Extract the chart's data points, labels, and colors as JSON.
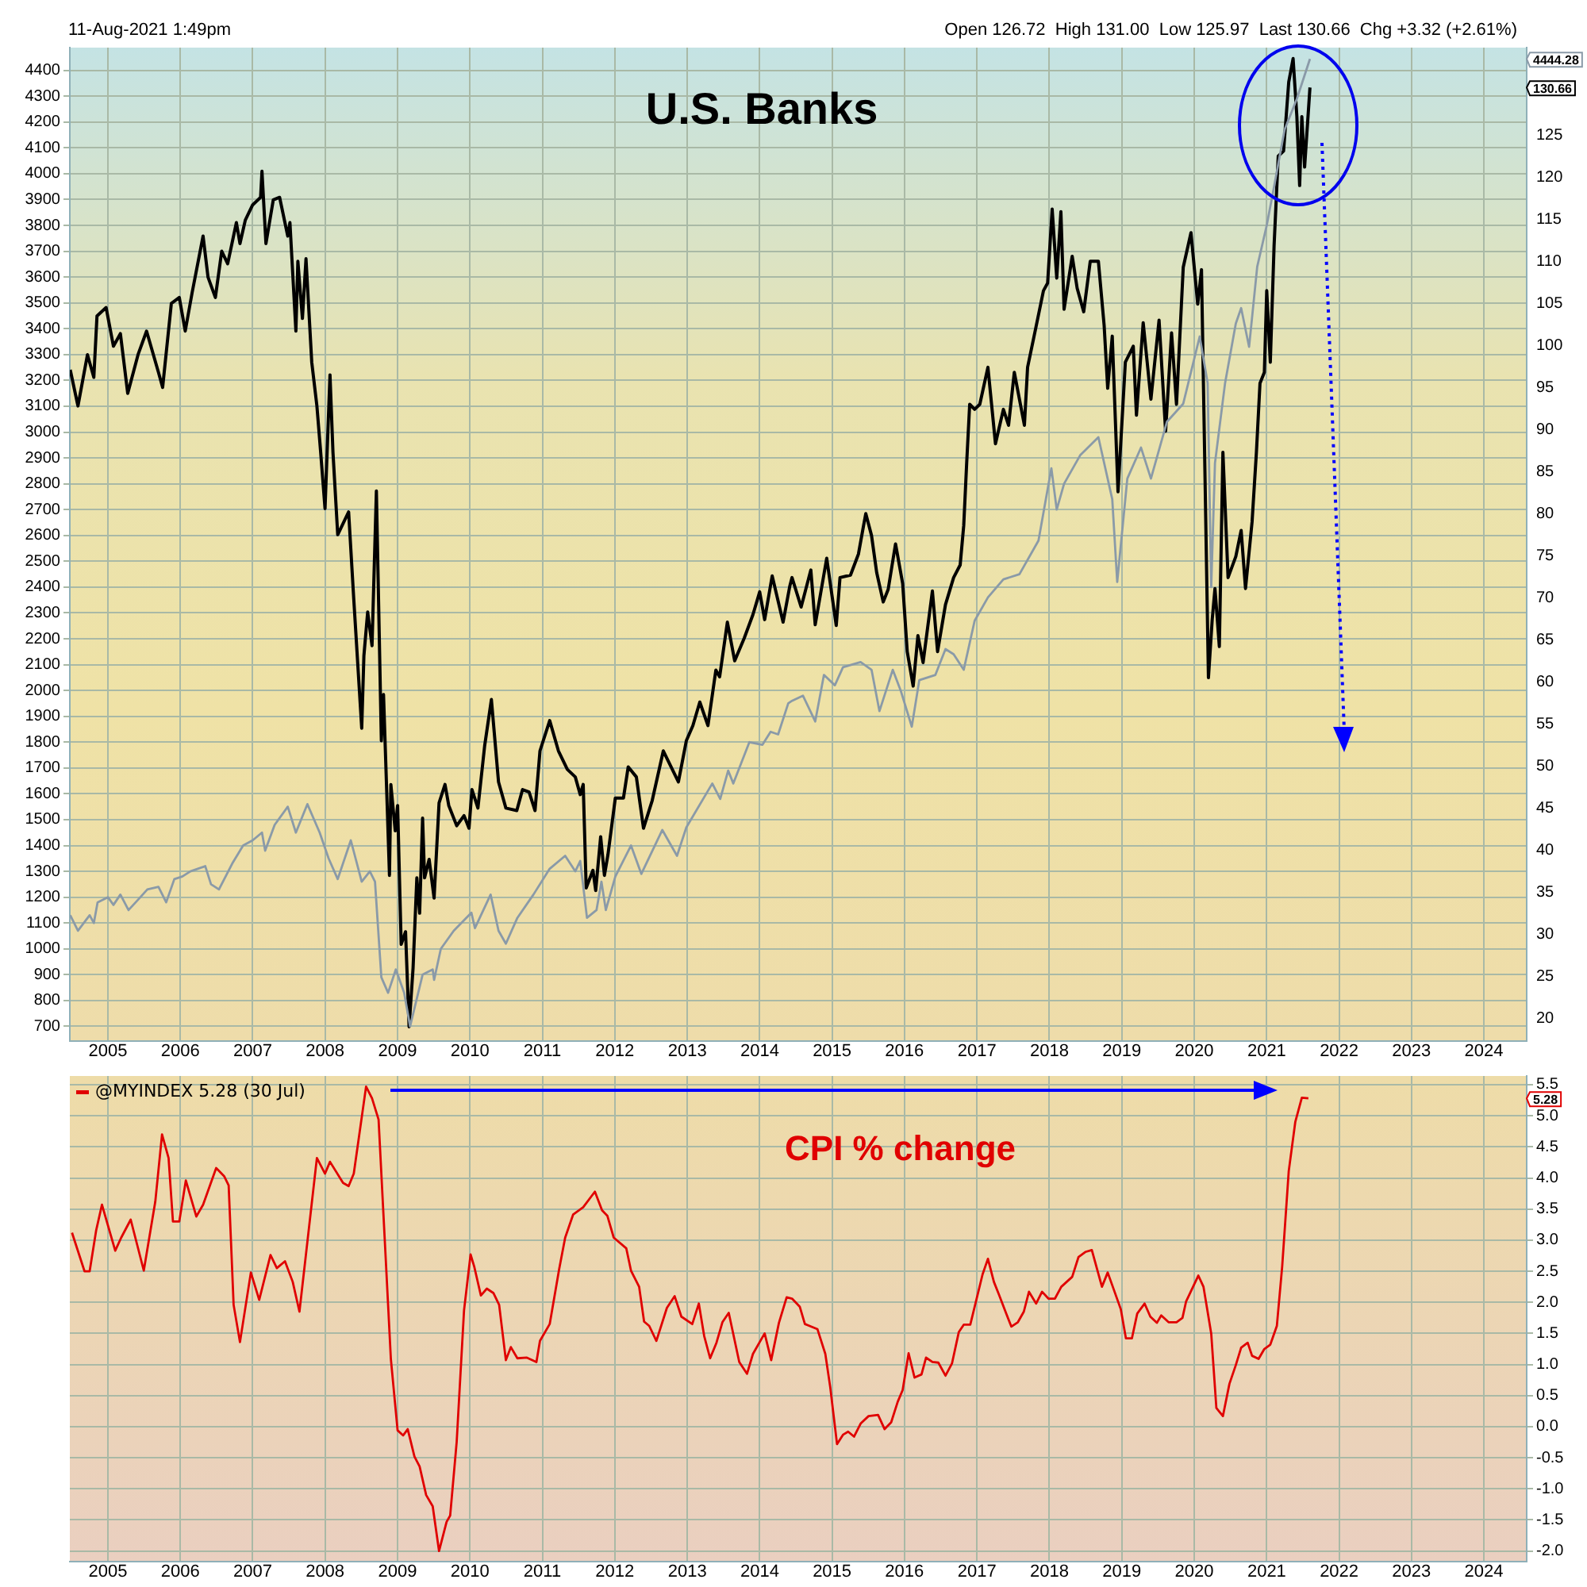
{
  "chart_data": [
    {
      "type": "line",
      "title": "U.S. Banks",
      "subtitle": "11-Aug-2021 1:49pm",
      "annotations": [
        "Open 126.72  High 131.00  Low 125.97  Last 130.66  Chg +3.32 (+2.61%)",
        "4444.28",
        "130.66"
      ],
      "xlim": [
        "2004-06-23",
        "2024-08-04"
      ],
      "xticks": [
        {
          "value": "2005-01-01",
          "label": "2005"
        },
        {
          "value": "2006-01-01",
          "label": "2006"
        },
        {
          "value": "2007-01-01",
          "label": "2007"
        },
        {
          "value": "2008-01-01",
          "label": "2008"
        },
        {
          "value": "2009-01-01",
          "label": "2009"
        },
        {
          "value": "2010-01-01",
          "label": "2010"
        },
        {
          "value": "2011-01-01",
          "label": "2011"
        },
        {
          "value": "2012-01-01",
          "label": "2012"
        },
        {
          "value": "2013-01-01",
          "label": "2013"
        },
        {
          "value": "2014-01-01",
          "label": "2014"
        },
        {
          "value": "2015-01-01",
          "label": "2015"
        },
        {
          "value": "2016-01-01",
          "label": "2016"
        },
        {
          "value": "2017-01-01",
          "label": "2017"
        },
        {
          "value": "2018-01-01",
          "label": "2018"
        },
        {
          "value": "2019-01-01",
          "label": "2019"
        },
        {
          "value": "2020-01-01",
          "label": "2020"
        },
        {
          "value": "2021-01-01",
          "label": "2021"
        },
        {
          "value": "2022-01-01",
          "label": "2022"
        },
        {
          "value": "2023-01-01",
          "label": "2023"
        },
        {
          "value": "2024-01-01",
          "label": "2024"
        }
      ],
      "ylim": [
        643,
        4488
      ],
      "yticks": [
        700,
        800,
        900,
        1000,
        1100,
        1200,
        1300,
        1400,
        1500,
        1600,
        1700,
        1800,
        1900,
        2000,
        2100,
        2200,
        2300,
        2400,
        2500,
        2600,
        2700,
        2800,
        2900,
        3000,
        3100,
        3200,
        3300,
        3400,
        3500,
        3600,
        3700,
        3800,
        3900,
        4000,
        4100,
        4200,
        4300,
        4400
      ],
      "y2lim": [
        17.3,
        135.4
      ],
      "y2ticks": [
        20,
        25,
        30,
        35,
        40,
        45,
        50,
        55,
        60,
        65,
        70,
        75,
        80,
        85,
        90,
        95,
        100,
        105,
        110,
        115,
        120,
        125
      ],
      "grid": true,
      "series": [
        {
          "color": "#8a9aa8",
          "axis": "y",
          "x": [
            "2004-06-25",
            "2004-08-03",
            "2004-10-01",
            "2004-10-22",
            "2004-11-10",
            "2005-01-01",
            "2005-01-29",
            "2005-03-05",
            "2005-04-15",
            "2005-06-02",
            "2005-07-19",
            "2005-09-13",
            "2005-10-22",
            "2005-12-02",
            "2006-01-11",
            "2006-02-21",
            "2006-05-07",
            "2006-06-05",
            "2006-07-15",
            "2006-09-20",
            "2006-11-14",
            "2007-01-01",
            "2007-02-17",
            "2007-03-05",
            "2007-04-22",
            "2007-06-27",
            "2007-08-07",
            "2007-10-04",
            "2007-12-05",
            "2008-01-19",
            "2008-03-05",
            "2008-05-10",
            "2008-07-04",
            "2008-08-14",
            "2008-09-09",
            "2008-10-11",
            "2008-11-14",
            "2008-12-23",
            "2009-02-03",
            "2009-03-05",
            "2009-05-07",
            "2009-06-27",
            "2009-07-04",
            "2009-08-07",
            "2009-10-11",
            "2010-01-08",
            "2010-01-26",
            "2010-04-15",
            "2010-05-25",
            "2010-07-01",
            "2010-08-28",
            "2010-11-17",
            "2011-02-07",
            "2011-04-26",
            "2011-06-16",
            "2011-07-11",
            "2011-08-14",
            "2011-10-01",
            "2011-10-26",
            "2011-11-17",
            "2012-01-04",
            "2012-03-23",
            "2012-05-14",
            "2012-08-28",
            "2012-11-10",
            "2012-12-27",
            "2013-05-07",
            "2013-06-16",
            "2013-07-26",
            "2013-08-21",
            "2013-11-10",
            "2014-01-15",
            "2014-02-25",
            "2014-04-04",
            "2014-05-25",
            "2014-06-13",
            "2014-08-07",
            "2014-10-08",
            "2014-11-21",
            "2015-01-15",
            "2015-02-25",
            "2015-05-25",
            "2015-07-19",
            "2015-08-28",
            "2015-11-03",
            "2015-12-13",
            "2016-02-07",
            "2016-03-16",
            "2016-06-05",
            "2016-07-26",
            "2016-09-05",
            "2016-10-26",
            "2016-12-20",
            "2017-02-25",
            "2017-05-14",
            "2017-08-03",
            "2017-11-07",
            "2018-01-11",
            "2018-02-07",
            "2018-03-16",
            "2018-06-05",
            "2018-09-05",
            "2018-11-14",
            "2018-12-09",
            "2019-01-29",
            "2019-04-08",
            "2019-05-28",
            "2019-08-17",
            "2019-11-07",
            "2020-01-29",
            "2020-03-09",
            "2020-03-27",
            "2020-04-15",
            "2020-06-05",
            "2020-07-29",
            "2020-08-25",
            "2020-10-04",
            "2020-11-14",
            "2021-01-01",
            "2021-02-07",
            "2021-04-01",
            "2021-06-02",
            "2021-08-07"
          ],
          "values": [
            1130,
            1070,
            1130,
            1100,
            1180,
            1200,
            1170,
            1210,
            1150,
            1190,
            1230,
            1240,
            1180,
            1270,
            1280,
            1300,
            1320,
            1250,
            1230,
            1330,
            1400,
            1420,
            1450,
            1380,
            1480,
            1550,
            1450,
            1560,
            1450,
            1350,
            1270,
            1420,
            1260,
            1300,
            1260,
            890,
            830,
            920,
            830,
            700,
            900,
            920,
            880,
            1000,
            1070,
            1140,
            1080,
            1210,
            1070,
            1020,
            1120,
            1210,
            1310,
            1360,
            1300,
            1340,
            1120,
            1150,
            1260,
            1150,
            1280,
            1400,
            1290,
            1460,
            1360,
            1470,
            1640,
            1580,
            1690,
            1640,
            1800,
            1790,
            1840,
            1830,
            1950,
            1960,
            1980,
            1880,
            2060,
            2020,
            2090,
            2110,
            2080,
            1920,
            2080,
            2000,
            1860,
            2040,
            2060,
            2160,
            2140,
            2080,
            2270,
            2360,
            2430,
            2450,
            2580,
            2860,
            2700,
            2800,
            2910,
            2980,
            2740,
            2420,
            2820,
            2940,
            2820,
            3040,
            3110,
            3370,
            3190,
            2400,
            2880,
            3190,
            3420,
            3480,
            3330,
            3640,
            3800,
            3950,
            4170,
            4290,
            4444.28
          ]
        },
        {
          "color": "#000000",
          "axis": "y2",
          "x": [
            "2004-06-25",
            "2004-08-03",
            "2004-09-20",
            "2004-10-22",
            "2004-11-07",
            "2004-12-23",
            "2005-01-29",
            "2005-03-05",
            "2005-04-11",
            "2005-06-02",
            "2005-07-15",
            "2005-09-13",
            "2005-10-04",
            "2005-11-17",
            "2005-12-27",
            "2006-01-26",
            "2006-03-02",
            "2006-04-26",
            "2006-05-21",
            "2006-06-27",
            "2006-07-29",
            "2006-08-28",
            "2006-10-11",
            "2006-10-29",
            "2006-11-25",
            "2007-01-01",
            "2007-02-10",
            "2007-02-17",
            "2007-03-09",
            "2007-04-15",
            "2007-05-17",
            "2007-06-27",
            "2007-07-08",
            "2007-08-07",
            "2007-08-17",
            "2007-09-09",
            "2007-09-27",
            "2007-10-26",
            "2007-11-21",
            "2007-12-09",
            "2008-01-01",
            "2008-01-26",
            "2008-02-10",
            "2008-03-05",
            "2008-04-29",
            "2008-05-25",
            "2008-07-04",
            "2008-07-15",
            "2008-08-03",
            "2008-08-25",
            "2008-09-16",
            "2008-10-11",
            "2008-10-22",
            "2008-11-21",
            "2008-11-28",
            "2008-12-20",
            "2009-01-01",
            "2009-01-19",
            "2009-02-10",
            "2009-02-28",
            "2009-03-20",
            "2009-04-08",
            "2009-04-22",
            "2009-05-07",
            "2009-05-17",
            "2009-06-09",
            "2009-07-04",
            "2009-07-29",
            "2009-08-28",
            "2009-09-16",
            "2009-10-26",
            "2009-12-02",
            "2009-12-27",
            "2010-01-11",
            "2010-02-10",
            "2010-03-16",
            "2010-04-19",
            "2010-05-25",
            "2010-07-01",
            "2010-08-25",
            "2010-09-23",
            "2010-10-26",
            "2010-11-25",
            "2010-12-20",
            "2011-02-07",
            "2011-03-23",
            "2011-05-07",
            "2011-06-16",
            "2011-07-11",
            "2011-07-26",
            "2011-08-10",
            "2011-09-13",
            "2011-09-27",
            "2011-10-22",
            "2011-11-10",
            "2011-11-28",
            "2012-01-04",
            "2012-02-14",
            "2012-03-09",
            "2012-04-19",
            "2012-05-25",
            "2012-07-08",
            "2012-09-02",
            "2012-10-11",
            "2012-11-17",
            "2012-12-27",
            "2013-01-29",
            "2013-03-05",
            "2013-04-15",
            "2013-05-25",
            "2013-06-13",
            "2013-07-22",
            "2013-08-28",
            "2013-10-15",
            "2013-11-28",
            "2014-01-01",
            "2014-01-26",
            "2014-03-05",
            "2014-04-29",
            "2014-06-02",
            "2014-06-13",
            "2014-07-29",
            "2014-09-16",
            "2014-10-08",
            "2014-12-05",
            "2015-01-22",
            "2015-02-10",
            "2015-04-04",
            "2015-05-14",
            "2015-06-09",
            "2015-06-20",
            "2015-07-19",
            "2015-08-14",
            "2015-09-16",
            "2015-10-11",
            "2015-11-17",
            "2015-12-23",
            "2016-01-15",
            "2016-02-14",
            "2016-03-09",
            "2016-04-04",
            "2016-05-21",
            "2016-06-16",
            "2016-07-26",
            "2016-09-05",
            "2016-10-08",
            "2016-10-26",
            "2016-11-10",
            "2016-11-25",
            "2016-12-20",
            "2017-01-15",
            "2017-02-25",
            "2017-04-04",
            "2017-05-14",
            "2017-06-09",
            "2017-07-08",
            "2017-08-28",
            "2017-09-13",
            "2017-10-22",
            "2017-12-02",
            "2017-12-23",
            "2018-01-15",
            "2018-02-07",
            "2018-02-28",
            "2018-03-16",
            "2018-04-26",
            "2018-05-21",
            "2018-06-23",
            "2018-07-26",
            "2018-09-05",
            "2018-10-04",
            "2018-10-22",
            "2018-11-14",
            "2018-12-13",
            "2019-01-19",
            "2019-02-28",
            "2019-03-16",
            "2019-04-19",
            "2019-05-28",
            "2019-07-08",
            "2019-08-10",
            "2019-09-09",
            "2019-10-04",
            "2019-11-07",
            "2019-12-16",
            "2020-01-19",
            "2020-02-07",
            "2020-03-13",
            "2020-04-01",
            "2020-04-15",
            "2020-05-07",
            "2020-05-25",
            "2020-06-20",
            "2020-07-29",
            "2020-08-25",
            "2020-09-16",
            "2020-10-19",
            "2020-11-10",
            "2020-11-28",
            "2020-12-20",
            "2021-01-01",
            "2021-01-19",
            "2021-02-07",
            "2021-02-28",
            "2021-03-27",
            "2021-04-22",
            "2021-05-14",
            "2021-06-02",
            "2021-06-16",
            "2021-06-27",
            "2021-07-11",
            "2021-08-07"
          ],
          "values": [
            97.1,
            92.8,
            98.9,
            96.2,
            103.5,
            104.5,
            99.9,
            101.4,
            94.3,
            98.9,
            101.7,
            96.8,
            95.0,
            105.0,
            105.7,
            101.7,
            106.3,
            113.0,
            108.1,
            105.7,
            111.2,
            109.7,
            114.6,
            112.1,
            114.9,
            116.7,
            117.6,
            120.7,
            112.1,
            117.3,
            117.6,
            113.0,
            114.6,
            101.7,
            110.0,
            103.2,
            110.3,
            98.0,
            92.8,
            87.6,
            80.6,
            96.5,
            87.3,
            77.5,
            80.2,
            69.8,
            54.5,
            63.1,
            68.3,
            64.3,
            82.7,
            53.0,
            58.5,
            37.0,
            47.8,
            42.3,
            45.3,
            28.8,
            30.3,
            19.0,
            26.0,
            36.7,
            32.5,
            43.8,
            36.7,
            38.9,
            34.3,
            45.6,
            47.8,
            45.3,
            42.9,
            44.1,
            42.6,
            47.2,
            45.0,
            52.4,
            57.9,
            48.1,
            45.0,
            44.7,
            47.2,
            46.9,
            44.7,
            51.8,
            55.4,
            51.8,
            49.6,
            48.7,
            46.6,
            47.8,
            35.5,
            37.6,
            35.2,
            41.6,
            37.0,
            39.5,
            46.2,
            46.2,
            49.9,
            48.7,
            42.6,
            45.9,
            51.8,
            49.9,
            48.1,
            53.0,
            54.8,
            57.6,
            54.8,
            61.4,
            60.6,
            67.1,
            62.5,
            65.2,
            68.0,
            70.7,
            67.4,
            72.6,
            67.1,
            71.4,
            72.4,
            68.9,
            73.3,
            66.8,
            74.7,
            66.7,
            72.4,
            72.7,
            75.2,
            78.6,
            80.0,
            77.4,
            73.0,
            69.5,
            71.0,
            76.4,
            71.7,
            63.6,
            59.5,
            65.5,
            62.3,
            70.8,
            63.6,
            69.2,
            72.4,
            73.9,
            78.6,
            86.1,
            93.0,
            92.4,
            93.0,
            97.4,
            88.3,
            92.4,
            90.5,
            96.8,
            90.5,
            97.4,
            101.8,
            106.5,
            107.4,
            116.2,
            108.0,
            115.9,
            104.3,
            110.6,
            106.8,
            104.0,
            110.0,
            110.0,
            102.4,
            94.9,
            101.1,
            82.6,
            98.0,
            99.9,
            91.7,
            102.7,
            93.6,
            103.0,
            89.8,
            101.5,
            93.0,
            109.3,
            113.4,
            104.9,
            109.0,
            60.5,
            67.4,
            71.1,
            64.2,
            87.3,
            72.4,
            74.9,
            78.0,
            71.1,
            79.0,
            87.3,
            95.5,
            96.8,
            106.5,
            98.0,
            111.8,
            122.5,
            123.1,
            131.3,
            134.1,
            127.2,
            119.0,
            127.2,
            121.2,
            130.66
          ]
        }
      ]
    },
    {
      "type": "line",
      "legend": "top left",
      "annotations": [
        "CPI % change",
        "5.28"
      ],
      "xlim": [
        "2004-06-23",
        "2024-08-04"
      ],
      "xticks": [
        {
          "value": "2005-01-01",
          "label": "2005"
        },
        {
          "value": "2006-01-01",
          "label": "2006"
        },
        {
          "value": "2007-01-01",
          "label": "2007"
        },
        {
          "value": "2008-01-01",
          "label": "2008"
        },
        {
          "value": "2009-01-01",
          "label": "2009"
        },
        {
          "value": "2010-01-01",
          "label": "2010"
        },
        {
          "value": "2011-01-01",
          "label": "2011"
        },
        {
          "value": "2012-01-01",
          "label": "2012"
        },
        {
          "value": "2013-01-01",
          "label": "2013"
        },
        {
          "value": "2014-01-01",
          "label": "2014"
        },
        {
          "value": "2015-01-01",
          "label": "2015"
        },
        {
          "value": "2016-01-01",
          "label": "2016"
        },
        {
          "value": "2017-01-01",
          "label": "2017"
        },
        {
          "value": "2018-01-01",
          "label": "2018"
        },
        {
          "value": "2019-01-01",
          "label": "2019"
        },
        {
          "value": "2020-01-01",
          "label": "2020"
        },
        {
          "value": "2021-01-01",
          "label": "2021"
        },
        {
          "value": "2022-01-01",
          "label": "2022"
        },
        {
          "value": "2023-01-01",
          "label": "2023"
        },
        {
          "value": "2024-01-01",
          "label": "2024"
        }
      ],
      "y2lim": [
        -2.17,
        5.64
      ],
      "y2ticks": [
        {
          "value": -2,
          "label": "-2.0"
        },
        -1.5,
        {
          "value": -1,
          "label": "-1.0"
        },
        -0.5,
        {
          "value": 0,
          "label": "0.0"
        },
        0.5,
        {
          "value": 1,
          "label": "1.0"
        },
        1.5,
        {
          "value": 2,
          "label": "2.0"
        },
        2.5,
        {
          "value": 3,
          "label": "3.0"
        },
        3.5,
        {
          "value": 4,
          "label": "4.0"
        },
        4.5,
        {
          "value": 5,
          "label": "5.0"
        },
        5.5
      ],
      "grid": true,
      "series": [
        {
          "name": "@MYINDEX 5.28 (30 Jul)",
          "color": "#e00000",
          "axis": "y2",
          "x": [
            "2004-07-04",
            "2004-09-05",
            "2004-10-01",
            "2004-11-03",
            "2004-12-02",
            "2005-02-07",
            "2005-03-09",
            "2005-04-26",
            "2005-07-01",
            "2005-08-28",
            "2005-10-01",
            "2005-11-03",
            "2005-11-25",
            "2005-12-27",
            "2006-01-29",
            "2006-03-23",
            "2006-04-26",
            "2006-07-01",
            "2006-08-10",
            "2006-09-02",
            "2006-09-27",
            "2006-10-29",
            "2006-12-23",
            "2007-02-03",
            "2007-04-01",
            "2007-05-03",
            "2007-06-13",
            "2007-07-22",
            "2007-08-25",
            "2007-11-21",
            "2008-01-01",
            "2008-01-26",
            "2008-04-01",
            "2008-04-29",
            "2008-05-25",
            "2008-07-26",
            "2008-08-25",
            "2008-09-27",
            "2008-11-28",
            "2009-01-01",
            "2009-01-29",
            "2009-02-21",
            "2009-03-27",
            "2009-04-22",
            "2009-05-25",
            "2009-06-27",
            "2009-07-29",
            "2009-09-05",
            "2009-09-23",
            "2009-10-26",
            "2009-12-02",
            "2010-01-04",
            "2010-01-22",
            "2010-02-25",
            "2010-03-27",
            "2010-04-29",
            "2010-05-28",
            "2010-07-01",
            "2010-07-26",
            "2010-08-28",
            "2010-10-15",
            "2010-12-02",
            "2010-12-20",
            "2011-02-07",
            "2011-03-27",
            "2011-04-26",
            "2011-06-05",
            "2011-07-26",
            "2011-09-23",
            "2011-10-29",
            "2011-11-25",
            "2011-12-27",
            "2012-02-28",
            "2012-03-23",
            "2012-05-03",
            "2012-05-28",
            "2012-06-23",
            "2012-07-29",
            "2012-09-20",
            "2012-10-29",
            "2012-12-02",
            "2013-01-26",
            "2013-02-28",
            "2013-03-27",
            "2013-04-26",
            "2013-05-28",
            "2013-06-27",
            "2013-07-29",
            "2013-09-20",
            "2013-10-29",
            "2013-11-28",
            "2014-01-26",
            "2014-02-28",
            "2014-04-08",
            "2014-05-17",
            "2014-06-13",
            "2014-07-22",
            "2014-08-17",
            "2014-10-19",
            "2014-11-28",
            "2014-12-23",
            "2015-01-26",
            "2015-02-25",
            "2015-03-23",
            "2015-04-22",
            "2015-05-25",
            "2015-07-04",
            "2015-08-21",
            "2015-09-23",
            "2015-10-26",
            "2015-11-28",
            "2015-12-23",
            "2016-01-22",
            "2016-02-21",
            "2016-03-27",
            "2016-04-19",
            "2016-05-21",
            "2016-06-20",
            "2016-07-26",
            "2016-08-28",
            "2016-10-01",
            "2016-10-26",
            "2016-11-28",
            "2017-01-29",
            "2017-02-25",
            "2017-03-27",
            "2017-04-22",
            "2017-05-28",
            "2017-06-23",
            "2017-07-26",
            "2017-08-25",
            "2017-09-20",
            "2017-10-26",
            "2017-11-25",
            "2017-12-27",
            "2018-01-29",
            "2018-03-02",
            "2018-04-26",
            "2018-05-28",
            "2018-07-01",
            "2018-08-03",
            "2018-09-23",
            "2018-10-22",
            "2018-12-27",
            "2019-01-22",
            "2019-02-21",
            "2019-03-20",
            "2019-04-26",
            "2019-05-25",
            "2019-06-27",
            "2019-07-19",
            "2019-08-25",
            "2019-10-04",
            "2019-11-03",
            "2019-11-21",
            "2020-01-22",
            "2020-02-17",
            "2020-03-27",
            "2020-04-22",
            "2020-05-25",
            "2020-06-27",
            "2020-07-29",
            "2020-08-25",
            "2020-09-27",
            "2020-10-19",
            "2020-11-21",
            "2020-12-20",
            "2021-01-19",
            "2021-02-21",
            "2021-03-20",
            "2021-04-22",
            "2021-05-25",
            "2021-06-27",
            "2021-07-30"
          ],
          "values": [
            3.12,
            2.5,
            2.5,
            3.16,
            3.57,
            2.83,
            3.04,
            3.33,
            2.51,
            3.62,
            4.7,
            4.32,
            3.3,
            3.3,
            3.96,
            3.38,
            3.57,
            4.16,
            4.03,
            3.88,
            1.96,
            1.36,
            2.48,
            2.04,
            2.76,
            2.55,
            2.66,
            2.33,
            1.85,
            4.32,
            4.07,
            4.26,
            3.92,
            3.87,
            4.07,
            5.47,
            5.28,
            4.94,
            1.09,
            -0.06,
            -0.14,
            -0.04,
            -0.48,
            -0.64,
            -1.1,
            -1.28,
            -2.0,
            -1.53,
            -1.43,
            -0.24,
            1.87,
            2.77,
            2.58,
            2.11,
            2.22,
            2.15,
            1.96,
            1.07,
            1.28,
            1.1,
            1.11,
            1.04,
            1.38,
            1.65,
            2.54,
            3.04,
            3.41,
            3.53,
            3.78,
            3.48,
            3.39,
            3.04,
            2.87,
            2.51,
            2.25,
            1.69,
            1.62,
            1.38,
            1.91,
            2.1,
            1.77,
            1.65,
            1.98,
            1.46,
            1.1,
            1.35,
            1.68,
            1.83,
            1.04,
            0.85,
            1.17,
            1.5,
            1.07,
            1.67,
            2.08,
            2.06,
            1.93,
            1.65,
            1.57,
            1.17,
            0.63,
            -0.28,
            -0.13,
            -0.08,
            -0.16,
            0.05,
            0.17,
            0.19,
            -0.04,
            0.07,
            0.4,
            0.59,
            1.18,
            0.79,
            0.84,
            1.11,
            1.04,
            1.03,
            0.82,
            1.02,
            1.52,
            1.64,
            1.64,
            2.45,
            2.7,
            2.33,
            2.12,
            1.82,
            1.61,
            1.68,
            1.85,
            2.17,
            1.98,
            2.17,
            2.06,
            2.06,
            2.25,
            2.41,
            2.73,
            2.81,
            2.84,
            2.25,
            2.48,
            1.89,
            1.42,
            1.42,
            1.82,
            1.98,
            1.77,
            1.67,
            1.79,
            1.68,
            1.68,
            1.75,
            2.01,
            2.43,
            2.25,
            1.5,
            0.3,
            0.17,
            0.69,
            0.99,
            1.27,
            1.35,
            1.14,
            1.09,
            1.25,
            1.32,
            1.62,
            2.58,
            4.11,
            4.9,
            5.29,
            5.28
          ]
        }
      ]
    }
  ]
}
